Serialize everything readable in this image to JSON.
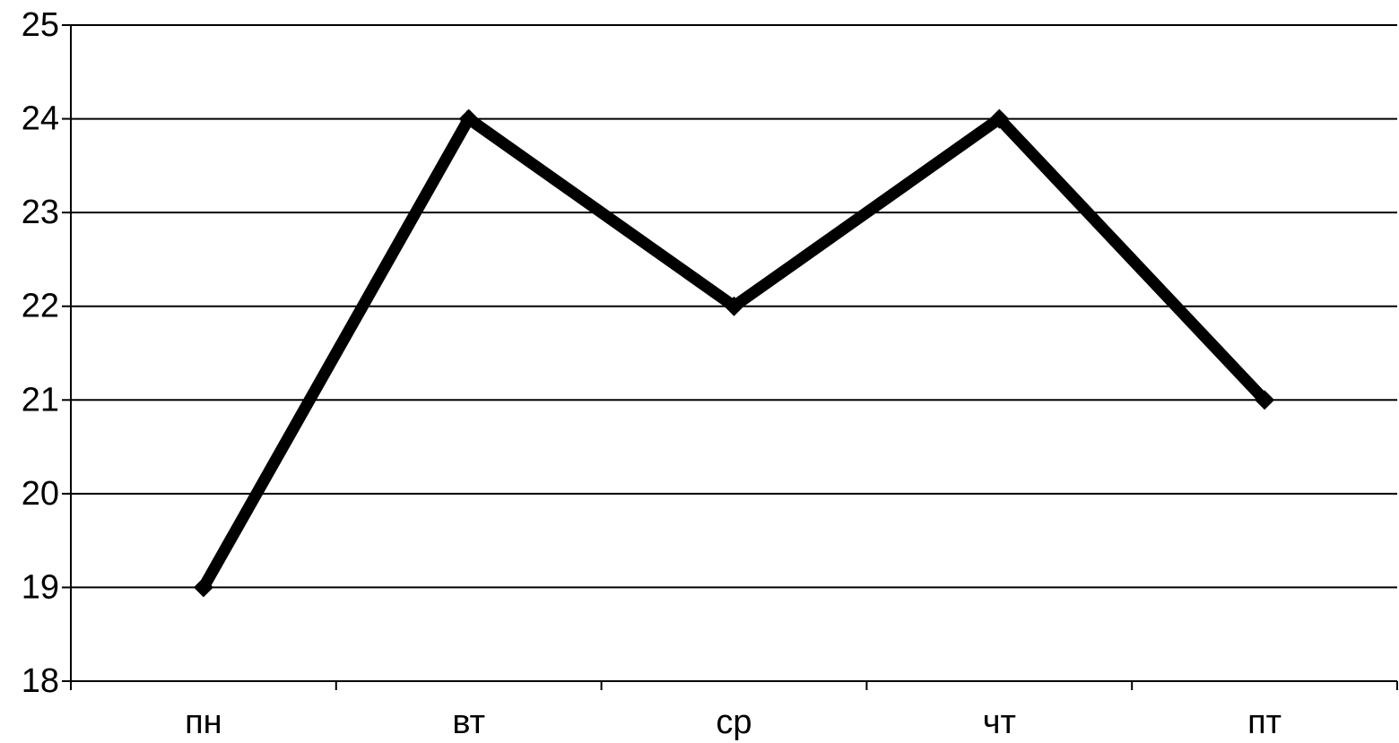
{
  "chart_data": {
    "type": "line",
    "title": "",
    "xlabel": "",
    "ylabel": "",
    "categories": [
      "пн",
      "вт",
      "ср",
      "чт",
      "пт"
    ],
    "series": [
      {
        "values": [
          19,
          24,
          22,
          24,
          21
        ],
        "color": "#000000"
      }
    ],
    "ylim": [
      18,
      25
    ],
    "y_ticks": [
      "18",
      "19",
      "20",
      "21",
      "22",
      "23",
      "24",
      "25"
    ],
    "grid": true,
    "legend": "none"
  }
}
